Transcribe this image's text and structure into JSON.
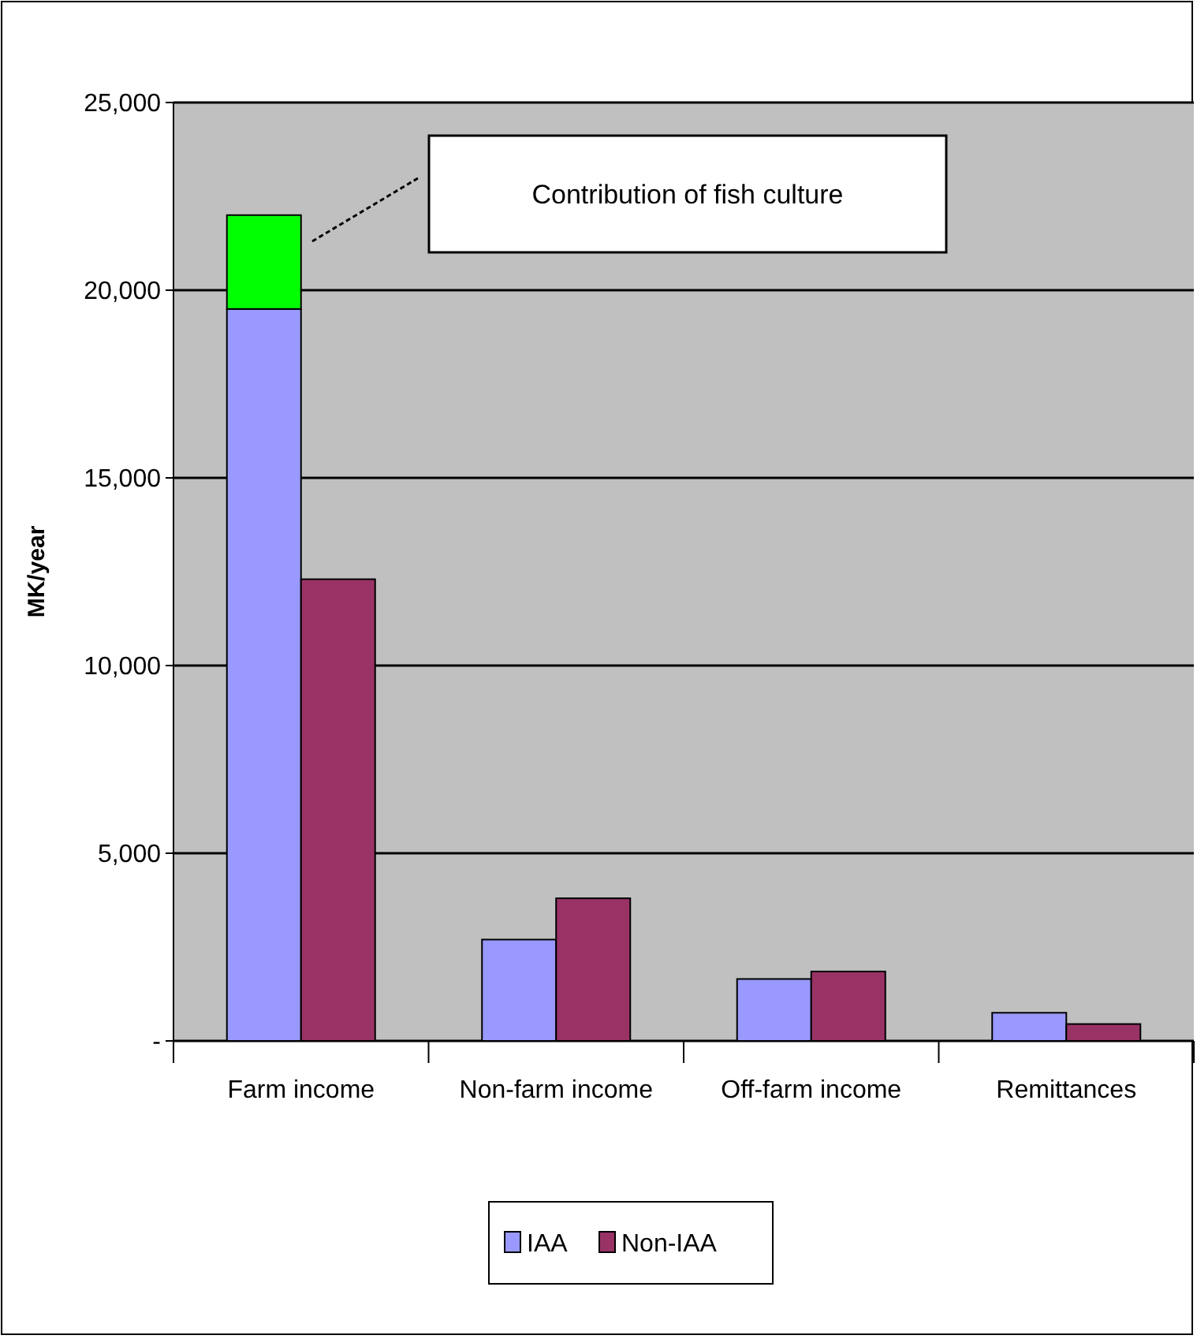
{
  "chart_data": {
    "type": "bar",
    "ylabel": "MK/year",
    "categories": [
      "Farm income",
      "Non-farm income",
      "Off-farm income",
      "Remittances"
    ],
    "series": [
      {
        "name": "IAA",
        "color": "#9999ff",
        "values": [
          19500,
          2700,
          1650,
          750
        ]
      },
      {
        "color": "#00ff00",
        "values": [
          2500,
          null,
          null,
          null
        ],
        "base": [
          19500,
          null,
          null,
          null
        ]
      },
      {
        "name": "Non-IAA",
        "color": "#993366",
        "values": [
          12300,
          3800,
          1850,
          450
        ]
      }
    ],
    "ylim": [
      0,
      25000
    ],
    "yticks": [
      {
        "value": 0,
        "label": "-"
      },
      {
        "value": 5000,
        "label": "5,000"
      },
      {
        "value": 10000,
        "label": "10,000"
      },
      {
        "value": 15000,
        "label": "15,000"
      },
      {
        "value": 20000,
        "label": "20,000"
      },
      {
        "value": 25000,
        "label": "25,000"
      }
    ],
    "grid": "y",
    "legend": "bottom",
    "annotations": [
      "Contribution of fish culture"
    ]
  }
}
